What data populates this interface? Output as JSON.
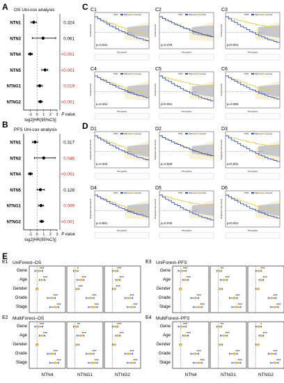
{
  "panel_letters": {
    "A": "A",
    "B": "B",
    "C": "C",
    "D": "D",
    "E": "E"
  },
  "forest_os": {
    "title": "OS Uni-cox analysis",
    "genes": [
      "NTN1",
      "NTN3",
      "NTN4",
      "NTN5",
      "NTNG1",
      "NTNG2"
    ],
    "pvalues": [
      "0.324",
      "0.061",
      "<0.001",
      "<0.001",
      "0.019",
      "<0.001"
    ],
    "sig": [
      false,
      false,
      true,
      true,
      true,
      true
    ],
    "hr_log2": [
      -0.5,
      0.9,
      -1.0,
      1.2,
      0.4,
      0.5
    ],
    "ci_low": [
      -0.9,
      -0.7,
      -1.3,
      0.7,
      0.0,
      0.2
    ],
    "ci_high": [
      -0.1,
      2.8,
      -0.7,
      1.6,
      0.8,
      0.8
    ],
    "xlabel": "log2[HR(95%CI)]",
    "pval_header": "P value",
    "ticks": [
      "-1",
      "0",
      "1",
      "2",
      "3"
    ]
  },
  "forest_pfs": {
    "title": "PFS Uni-cox analysis",
    "genes": [
      "NTN1",
      "NTN3",
      "NTN4",
      "NTN5",
      "NTNG1",
      "NTNG2"
    ],
    "pvalues": [
      "0.317",
      "0.046",
      "<0.001",
      "0.128",
      "0.009",
      "<0.001"
    ],
    "sig": [
      false,
      true,
      true,
      false,
      true,
      true
    ],
    "hr_log2": [
      -0.3,
      1.0,
      -1.0,
      0.5,
      0.6,
      0.7
    ],
    "ci_low": [
      -0.7,
      -0.4,
      -1.3,
      0.0,
      0.2,
      0.4
    ],
    "ci_high": [
      0.1,
      2.7,
      -0.7,
      1.1,
      1.0,
      1.0
    ],
    "xlabel": "log2[HR(95%CI)]",
    "pval_header": "P value",
    "ticks": [
      "-1",
      "0",
      "1",
      "2",
      "3"
    ]
  },
  "km_os": {
    "ylabel": "Overall survival",
    "xlabel": "Time(years)",
    "legend": [
      "NTN4",
      "High level",
      "Low level"
    ],
    "panels": [
      {
        "label": "C1",
        "p": "p=0.031"
      },
      {
        "label": "C2",
        "p": "p=0.378"
      },
      {
        "label": "C3",
        "p": "p<0.001"
      },
      {
        "label": "C4",
        "p": "p=0.151"
      },
      {
        "label": "C5",
        "p": "p<0.001"
      },
      {
        "label": "C6",
        "p": "p=0.005"
      }
    ]
  },
  "km_pfs": {
    "ylabel": "Progression free survival",
    "xlabel": "Time(years)",
    "panels": [
      {
        "label": "D1",
        "p": "p=0.403"
      },
      {
        "label": "D2",
        "p": "p=0.509"
      },
      {
        "label": "D3",
        "p": "p<0.001"
      },
      {
        "label": "D4",
        "p": "p=0.861"
      },
      {
        "label": "D5",
        "p": "p=0.040"
      },
      {
        "label": "D6",
        "p": "p<0.001"
      }
    ]
  },
  "colors": {
    "high": "#2e4fb5",
    "low": "#e8c85a",
    "sig": "#e0251b",
    "point": "#f2b632",
    "bar": "#2340a8"
  },
  "multi_forest": {
    "rows": [
      "Gene",
      "Age",
      "Gender",
      "Grade",
      "Stage"
    ],
    "cols": [
      "NTN4",
      "NTNG1",
      "NTNG2"
    ],
    "panels": [
      {
        "label": "E1",
        "title": "UniForest–OS",
        "stars": [
          [
            "***",
            "*",
            "***"
          ],
          [
            "***",
            "***",
            "***"
          ],
          [
            "",
            "***",
            "***"
          ],
          [
            "***",
            "***",
            "***"
          ],
          [
            "***",
            "***",
            "***"
          ]
        ]
      },
      {
        "label": "E3",
        "title": "UniForest–PFS",
        "stars": [
          [
            "***",
            "**",
            "***"
          ],
          [
            "***",
            "***",
            "***"
          ],
          [
            "",
            "",
            ""
          ],
          [
            "***",
            "***",
            "***"
          ],
          [
            "***",
            "***",
            "***"
          ]
        ]
      },
      {
        "label": "E2",
        "title": "MultiForest–OS",
        "stars": [
          [
            "***",
            "**",
            "***"
          ],
          [
            "***",
            "***",
            "***"
          ],
          [
            "",
            "",
            ""
          ],
          [
            "***",
            "***",
            "***"
          ],
          [
            "***",
            "***",
            "***"
          ]
        ]
      },
      {
        "label": "E4",
        "title": "MultiForest–PFS",
        "stars": [
          [
            "***",
            "**",
            "*"
          ],
          [
            "***",
            "***",
            "***"
          ],
          [
            "",
            "",
            ""
          ],
          [
            "***",
            "***",
            "***"
          ],
          [
            "***",
            "***",
            "***"
          ]
        ]
      }
    ],
    "uni_ticks": [
      "0.5",
      "1.0",
      "1.5",
      "2.0",
      "2.5"
    ],
    "multi_ticks": [
      "0",
      "1",
      "2",
      "3",
      "4"
    ]
  },
  "chart_data": [
    {
      "type": "scatter",
      "title": "OS Uni-cox analysis",
      "xlabel": "log2[HR(95%CI)]",
      "categories": [
        "NTN1",
        "NTN3",
        "NTN4",
        "NTN5",
        "NTNG1",
        "NTNG2"
      ],
      "values": [
        -0.5,
        0.9,
        -1.0,
        1.2,
        0.4,
        0.5
      ],
      "xlim": [
        -2,
        3
      ]
    },
    {
      "type": "scatter",
      "title": "PFS Uni-cox analysis",
      "xlabel": "log2[HR(95%CI)]",
      "categories": [
        "NTN1",
        "NTN3",
        "NTN4",
        "NTN5",
        "NTNG1",
        "NTNG2"
      ],
      "values": [
        -0.3,
        1.0,
        -1.0,
        0.5,
        0.6,
        0.7
      ],
      "xlim": [
        -2,
        3
      ]
    }
  ]
}
